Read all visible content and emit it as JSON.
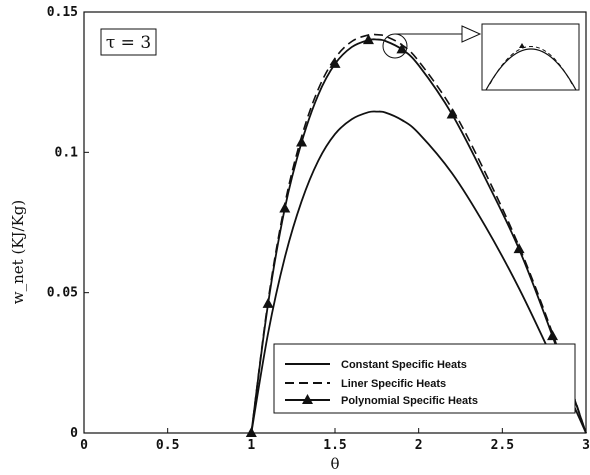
{
  "chart_data": {
    "type": "line",
    "annotation": "τ = 3",
    "xlabel": "θ",
    "ylabel": "w_net (KJ/Kg)",
    "xlim": [
      0,
      3
    ],
    "ylim": [
      0,
      0.15
    ],
    "xticks": [
      "0",
      "0.5",
      "1",
      "1.5",
      "2",
      "2.5",
      "3"
    ],
    "yticks": [
      "0",
      "0.05",
      "0.1",
      "0.15"
    ],
    "grid": false,
    "legend_position": "bottom-right",
    "inset": "zoom of curve peak near θ ≈ 1.87",
    "series": [
      {
        "name": "Constant Specific Heats",
        "style": "solid",
        "x": [
          1.0,
          1.1,
          1.2,
          1.3,
          1.4,
          1.5,
          1.6,
          1.7,
          1.75,
          1.8,
          1.9,
          2.0,
          2.2,
          2.4,
          2.6,
          2.8,
          3.0
        ],
        "values": [
          0.0,
          0.0355,
          0.0625,
          0.0825,
          0.097,
          0.1065,
          0.1118,
          0.1143,
          0.1145,
          0.1142,
          0.1115,
          0.1068,
          0.0925,
          0.0735,
          0.0515,
          0.0265,
          0.0
        ]
      },
      {
        "name": "Liner Specific Heats",
        "style": "dashed",
        "x": [
          1.0,
          1.1,
          1.2,
          1.3,
          1.4,
          1.5,
          1.6,
          1.7,
          1.75,
          1.8,
          1.9,
          2.0,
          2.2,
          2.4,
          2.6,
          2.8,
          3.0
        ],
        "values": [
          0.0,
          0.047,
          0.0815,
          0.1055,
          0.1225,
          0.1335,
          0.1395,
          0.1418,
          0.1419,
          0.1414,
          0.1383,
          0.1325,
          0.1155,
          0.0925,
          0.0665,
          0.0355,
          0.0
        ]
      },
      {
        "name": "Polynomial Specific Heats",
        "style": "solid-triangle",
        "x": [
          1.0,
          1.1,
          1.2,
          1.3,
          1.4,
          1.5,
          1.6,
          1.7,
          1.75,
          1.8,
          1.9,
          2.0,
          2.2,
          2.4,
          2.6,
          2.8,
          3.0
        ],
        "values": [
          0.0,
          0.046,
          0.08,
          0.1035,
          0.1205,
          0.1315,
          0.1375,
          0.14,
          0.1402,
          0.1397,
          0.1367,
          0.131,
          0.1135,
          0.0905,
          0.0655,
          0.0345,
          0.0
        ],
        "markers_x": [
          1.0,
          1.1,
          1.2,
          1.3,
          1.5,
          1.7,
          1.9,
          2.2,
          2.6,
          2.8
        ]
      }
    ]
  }
}
